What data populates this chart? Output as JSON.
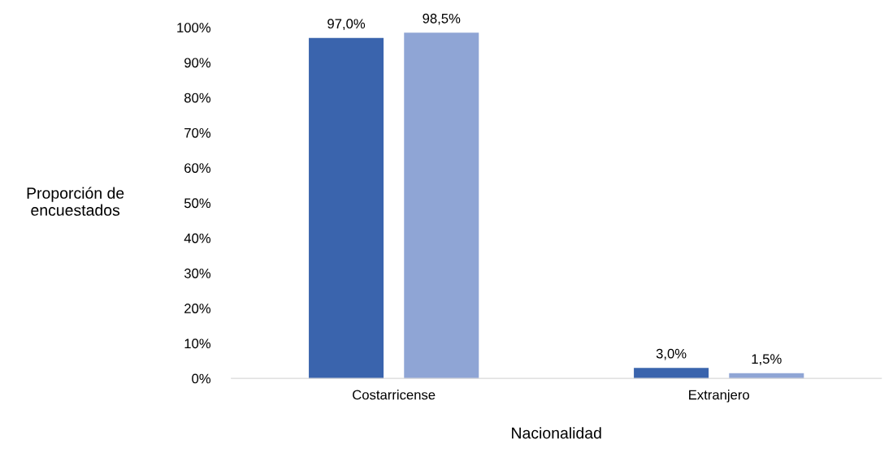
{
  "chart_data": {
    "type": "bar",
    "xlabel": "Nacionalidad",
    "ylabel": "Proporción de\nencuestados",
    "categories": [
      "Costarricense",
      "Extranjero"
    ],
    "series": [
      {
        "color": "#3a64ad",
        "values": [
          97.0,
          3.0
        ],
        "value_labels": [
          "97,0%",
          "3,0%"
        ]
      },
      {
        "color": "#8fa5d5",
        "values": [
          98.5,
          1.5
        ],
        "value_labels": [
          "98,5%",
          "1,5%"
        ]
      }
    ],
    "ylim": [
      0,
      100
    ],
    "yticks": [
      {
        "value": 0,
        "label": "0%"
      },
      {
        "value": 10,
        "label": "10%"
      },
      {
        "value": 20,
        "label": "20%"
      },
      {
        "value": 30,
        "label": "30%"
      },
      {
        "value": 40,
        "label": "40%"
      },
      {
        "value": 50,
        "label": "50%"
      },
      {
        "value": 60,
        "label": "60%"
      },
      {
        "value": 70,
        "label": "70%"
      },
      {
        "value": 80,
        "label": "80%"
      },
      {
        "value": 90,
        "label": "90%"
      },
      {
        "value": 100,
        "label": "100%"
      }
    ],
    "grid": false
  }
}
